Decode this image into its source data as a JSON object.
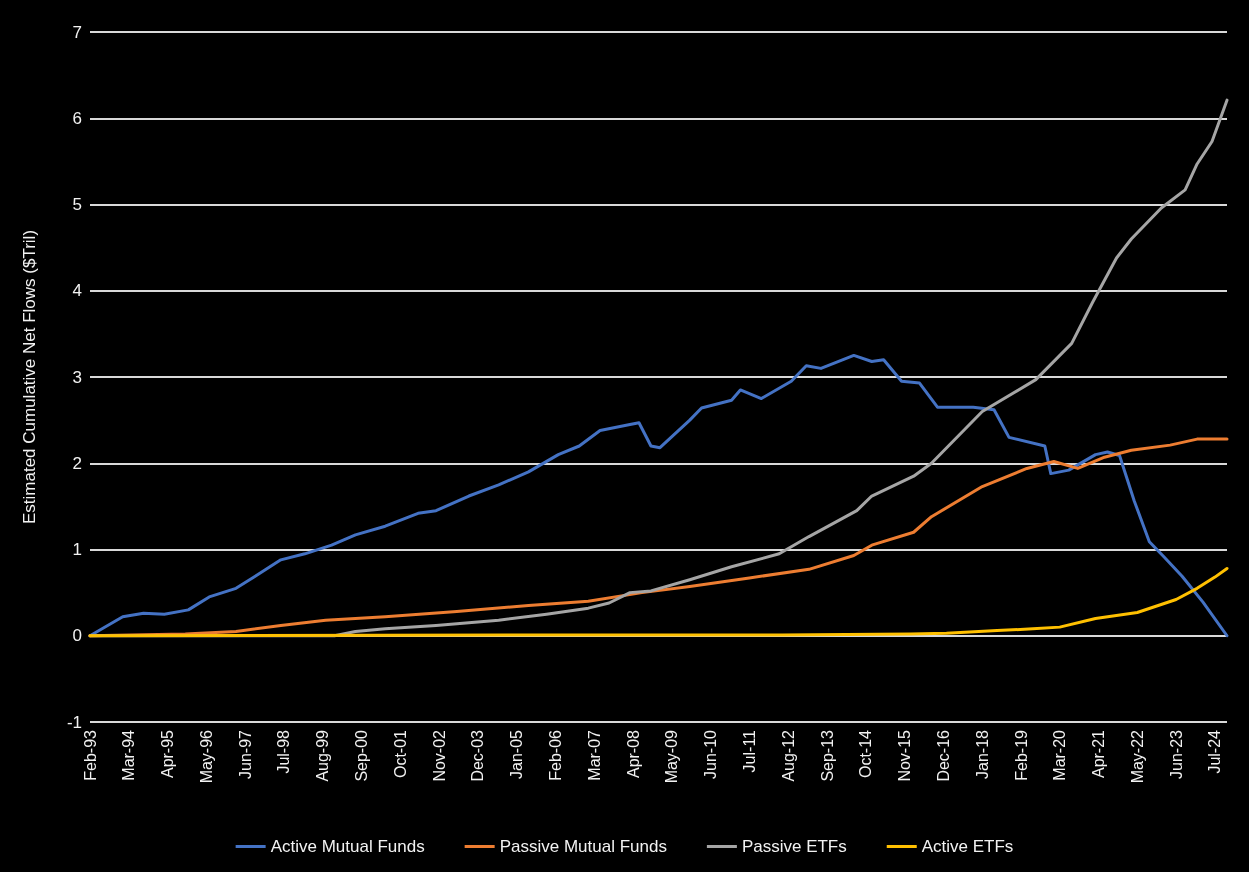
{
  "chart_data": {
    "type": "line",
    "ylabel": "Estimated Cumulative Net Flows ($Tril)",
    "xlim": [
      "1993-02",
      "2024-11"
    ],
    "ylim": [
      -1,
      7
    ],
    "yticks": [
      -1,
      0,
      1,
      2,
      3,
      4,
      5,
      6,
      7
    ],
    "xticks": [
      {
        "value": "1993-02",
        "label": "Feb-93"
      },
      {
        "value": "1994-03",
        "label": "Mar-94"
      },
      {
        "value": "1995-04",
        "label": "Apr-95"
      },
      {
        "value": "1996-05",
        "label": "May-96"
      },
      {
        "value": "1997-06",
        "label": "Jun-97"
      },
      {
        "value": "1998-07",
        "label": "Jul-98"
      },
      {
        "value": "1999-08",
        "label": "Aug-99"
      },
      {
        "value": "2000-09",
        "label": "Sep-00"
      },
      {
        "value": "2001-10",
        "label": "Oct-01"
      },
      {
        "value": "2002-11",
        "label": "Nov-02"
      },
      {
        "value": "2003-12",
        "label": "Dec-03"
      },
      {
        "value": "2005-01",
        "label": "Jan-05"
      },
      {
        "value": "2006-02",
        "label": "Feb-06"
      },
      {
        "value": "2007-03",
        "label": "Mar-07"
      },
      {
        "value": "2008-04",
        "label": "Apr-08"
      },
      {
        "value": "2009-05",
        "label": "May-09"
      },
      {
        "value": "2010-06",
        "label": "Jun-10"
      },
      {
        "value": "2011-07",
        "label": "Jul-11"
      },
      {
        "value": "2012-08",
        "label": "Aug-12"
      },
      {
        "value": "2013-09",
        "label": "Sep-13"
      },
      {
        "value": "2014-10",
        "label": "Oct-14"
      },
      {
        "value": "2015-11",
        "label": "Nov-15"
      },
      {
        "value": "2016-12",
        "label": "Dec-16"
      },
      {
        "value": "2018-01",
        "label": "Jan-18"
      },
      {
        "value": "2019-02",
        "label": "Feb-19"
      },
      {
        "value": "2020-03",
        "label": "Mar-20"
      },
      {
        "value": "2021-04",
        "label": "Apr-21"
      },
      {
        "value": "2022-05",
        "label": "May-22"
      },
      {
        "value": "2023-06",
        "label": "Jun-23"
      },
      {
        "value": "2024-07",
        "label": "Jul-24"
      }
    ],
    "grid": "y",
    "legend": "bottom",
    "marker": "none",
    "line_style": "solid",
    "series": [
      {
        "name": "Active Mutual Funds",
        "color": "#4472c4",
        "x": [
          "1993-02",
          "1994-01",
          "1994-08",
          "1995-03",
          "1995-11",
          "1996-06",
          "1997-03",
          "1997-09",
          "1998-06",
          "1999-02",
          "1999-11",
          "2000-07",
          "2001-05",
          "2002-04",
          "2002-10",
          "2003-09",
          "2004-07",
          "2005-05",
          "2006-03",
          "2006-10",
          "2007-05",
          "2008-03",
          "2008-06",
          "2008-10",
          "2009-01",
          "2009-11",
          "2010-03",
          "2011-01",
          "2011-04",
          "2011-11",
          "2012-09",
          "2013-02",
          "2013-07",
          "2014-06",
          "2014-12",
          "2015-04",
          "2015-10",
          "2016-04",
          "2016-10",
          "2017-10",
          "2018-05",
          "2018-10",
          "2019-10",
          "2019-12",
          "2020-06",
          "2021-03",
          "2021-07",
          "2021-11",
          "2022-04",
          "2022-09",
          "2023-02",
          "2023-08",
          "2024-03",
          "2024-11"
        ],
        "values": [
          0,
          0.22,
          0.26,
          0.25,
          0.3,
          0.45,
          0.55,
          0.68,
          0.88,
          0.95,
          1.05,
          1.17,
          1.27,
          1.42,
          1.45,
          1.62,
          1.75,
          1.9,
          2.1,
          2.2,
          2.38,
          2.45,
          2.47,
          2.2,
          2.18,
          2.5,
          2.64,
          2.73,
          2.85,
          2.75,
          2.95,
          3.13,
          3.1,
          3.25,
          3.18,
          3.2,
          2.95,
          2.93,
          2.65,
          2.65,
          2.62,
          2.3,
          2.2,
          1.88,
          1.92,
          2.1,
          2.13,
          2.09,
          1.56,
          1.09,
          0.91,
          0.69,
          0.39,
          0
        ]
      },
      {
        "name": "Passive Mutual Funds",
        "color": "#ed7d31",
        "x": [
          "1993-02",
          "1995-10",
          "1997-03",
          "1998-06",
          "1999-09",
          "2001-05",
          "2003-05",
          "2005-05",
          "2007-01",
          "2008-07",
          "2009-11",
          "2011-07",
          "2013-03",
          "2014-06",
          "2014-12",
          "2016-02",
          "2016-08",
          "2018-01",
          "2019-04",
          "2020-01",
          "2020-09",
          "2021-06",
          "2022-03",
          "2023-04",
          "2024-01",
          "2024-11"
        ],
        "values": [
          0,
          0.02,
          0.05,
          0.12,
          0.18,
          0.22,
          0.28,
          0.35,
          0.4,
          0.5,
          0.57,
          0.67,
          0.77,
          0.93,
          1.05,
          1.2,
          1.38,
          1.73,
          1.94,
          2.02,
          1.94,
          2.07,
          2.15,
          2.21,
          2.28,
          2.28
        ]
      },
      {
        "name": "Passive ETFs",
        "color": "#a5a5a5",
        "x": [
          "1993-02",
          "1999-12",
          "2000-07",
          "2001-05",
          "2002-10",
          "2004-07",
          "2005-11",
          "2007-01",
          "2007-08",
          "2008-03",
          "2008-10",
          "2009-11",
          "2011-01",
          "2012-05",
          "2013-03",
          "2014-07",
          "2014-12",
          "2016-02",
          "2016-08",
          "2018-01",
          "2019-07",
          "2020-07",
          "2021-02",
          "2021-10",
          "2022-03",
          "2023-01",
          "2023-09",
          "2024-01",
          "2024-06",
          "2024-11"
        ],
        "values": [
          0,
          0,
          0.05,
          0.08,
          0.12,
          0.18,
          0.25,
          0.32,
          0.38,
          0.5,
          0.52,
          0.65,
          0.8,
          0.95,
          1.15,
          1.45,
          1.62,
          1.85,
          2.0,
          2.6,
          2.97,
          3.39,
          3.87,
          4.38,
          4.6,
          4.96,
          5.17,
          5.47,
          5.73,
          6.21
        ]
      },
      {
        "name": "Active ETFs",
        "color": "#ffc000",
        "x": [
          "1993-02",
          "2008-06",
          "2012-06",
          "2016-01",
          "2017-01",
          "2018-06",
          "2019-06",
          "2020-03",
          "2021-03",
          "2022-05",
          "2023-06",
          "2024-01",
          "2024-07",
          "2024-11"
        ],
        "values": [
          0,
          0.01,
          0.01,
          0.02,
          0.03,
          0.06,
          0.08,
          0.1,
          0.2,
          0.27,
          0.42,
          0.55,
          0.68,
          0.78
        ]
      }
    ]
  }
}
